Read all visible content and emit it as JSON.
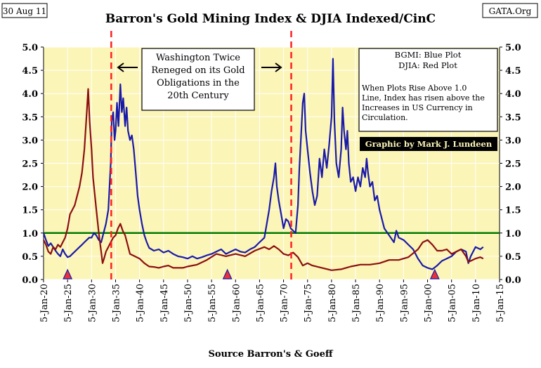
{
  "chart_data": {
    "type": "line",
    "title": "Barron's Gold Mining Index & DJIA Indexed/CinC",
    "date_badge": "30 Aug 11",
    "site_badge": "GATA.Org",
    "source": "Source Barron's & Goeff",
    "xlabel": "",
    "ylabel": "",
    "ylim": [
      0,
      5
    ],
    "xlim": [
      1920,
      2015
    ],
    "y_ticks": [
      "0.0",
      "0.5",
      "1.0",
      "1.5",
      "2.0",
      "2.5",
      "3.0",
      "3.5",
      "4.0",
      "4.5",
      "5.0"
    ],
    "x_ticks": [
      "5-Jan-20",
      "5-Jan-25",
      "5-Jan-30",
      "5-Jan-35",
      "5-Jan-40",
      "5-Jan-45",
      "5-Jan-50",
      "5-Jan-55",
      "5-Jan-60",
      "5-Jan-65",
      "5-Jan-70",
      "5-Jan-75",
      "5-Jan-80",
      "5-Jan-85",
      "5-Jan-90",
      "5-Jan-95",
      "5-Jan-00",
      "5-Jan-05",
      "5-Jan-10",
      "5-Jan-15"
    ],
    "x_tick_years": [
      1920,
      1925,
      1930,
      1935,
      1940,
      1945,
      1950,
      1955,
      1960,
      1965,
      1970,
      1975,
      1980,
      1985,
      1990,
      1995,
      2000,
      2005,
      2010,
      2015
    ],
    "grid": true,
    "reference_line": {
      "y": 1.0,
      "color": "#007a00"
    },
    "vertical_markers": [
      {
        "x": 1934.1,
        "color": "#ff2020"
      },
      {
        "x": 1971.6,
        "color": "#ff2020"
      }
    ],
    "triangle_markers": [
      {
        "x": 1925.0
      },
      {
        "x": 1958.3
      },
      {
        "x": 2001.5
      }
    ],
    "annotation_box": {
      "lines": [
        "Washington Twice",
        "Reneged on its Gold",
        "Obligations in the",
        "20th Century"
      ]
    },
    "legend_box": {
      "lines": [
        "BGMI: Blue Plot",
        "DJIA: Red Plot"
      ],
      "note": [
        "When Plots Rise Above 1.0",
        "Line, Index has risen above the",
        "Increases in US Currency in",
        "Circulation."
      ],
      "credit": "Graphic by Mark J. Lundeen"
    },
    "series": [
      {
        "color": "#1a1aa8",
        "x": [
          1920.0,
          1920.5,
          1921.0,
          1921.5,
          1922.0,
          1922.5,
          1923.0,
          1923.5,
          1924.0,
          1924.5,
          1925.0,
          1925.5,
          1926.0,
          1926.5,
          1927.0,
          1927.5,
          1928.0,
          1928.5,
          1929.0,
          1929.5,
          1930.0,
          1930.5,
          1931.0,
          1931.5,
          1932.0,
          1932.5,
          1933.0,
          1933.5,
          1934.0,
          1934.2,
          1934.5,
          1934.8,
          1935.0,
          1935.3,
          1935.6,
          1936.0,
          1936.3,
          1936.6,
          1937.0,
          1937.3,
          1937.6,
          1938.0,
          1938.4,
          1938.8,
          1939.2,
          1939.6,
          1940.0,
          1940.5,
          1941.0,
          1941.5,
          1942.0,
          1943.0,
          1944.0,
          1945.0,
          1946.0,
          1947.0,
          1948.0,
          1949.0,
          1950.0,
          1951.0,
          1952.0,
          1953.0,
          1954.0,
          1955.0,
          1956.0,
          1957.0,
          1958.0,
          1959.0,
          1960.0,
          1961.0,
          1962.0,
          1963.0,
          1964.0,
          1965.0,
          1966.0,
          1966.5,
          1967.0,
          1967.5,
          1968.0,
          1968.3,
          1968.6,
          1969.0,
          1969.5,
          1970.0,
          1970.5,
          1971.0,
          1971.5,
          1972.0,
          1972.5,
          1973.0,
          1973.3,
          1973.6,
          1974.0,
          1974.3,
          1974.6,
          1975.0,
          1975.5,
          1976.0,
          1976.5,
          1977.0,
          1977.5,
          1978.0,
          1978.5,
          1979.0,
          1979.5,
          1980.0,
          1980.3,
          1980.6,
          1981.0,
          1981.5,
          1982.0,
          1982.3,
          1982.6,
          1983.0,
          1983.3,
          1983.6,
          1984.0,
          1984.5,
          1985.0,
          1985.5,
          1986.0,
          1986.5,
          1987.0,
          1987.3,
          1987.6,
          1988.0,
          1988.5,
          1989.0,
          1989.5,
          1990.0,
          1991.0,
          1992.0,
          1993.0,
          1993.5,
          1994.0,
          1995.0,
          1996.0,
          1997.0,
          1998.0,
          1999.0,
          2000.0,
          2001.0,
          2002.0,
          2003.0,
          2004.0,
          2005.0,
          2006.0,
          2007.0,
          2008.0,
          2008.5,
          2009.0,
          2010.0,
          2011.0,
          2011.6
        ],
        "y": [
          1.0,
          0.85,
          0.72,
          0.78,
          0.7,
          0.62,
          0.55,
          0.5,
          0.65,
          0.55,
          0.48,
          0.5,
          0.55,
          0.6,
          0.65,
          0.7,
          0.75,
          0.8,
          0.85,
          0.9,
          0.9,
          1.0,
          0.95,
          0.85,
          0.8,
          1.0,
          1.2,
          1.5,
          2.5,
          3.4,
          3.6,
          3.0,
          3.2,
          3.8,
          3.3,
          4.2,
          3.6,
          3.9,
          3.3,
          3.7,
          3.2,
          3.0,
          3.1,
          2.8,
          2.3,
          1.8,
          1.5,
          1.2,
          0.95,
          0.8,
          0.68,
          0.62,
          0.65,
          0.58,
          0.62,
          0.55,
          0.5,
          0.48,
          0.45,
          0.5,
          0.45,
          0.48,
          0.52,
          0.55,
          0.6,
          0.65,
          0.55,
          0.6,
          0.65,
          0.6,
          0.58,
          0.65,
          0.7,
          0.8,
          0.9,
          1.2,
          1.5,
          1.9,
          2.2,
          2.5,
          2.0,
          1.7,
          1.4,
          1.1,
          1.3,
          1.25,
          1.1,
          1.05,
          1.0,
          1.6,
          2.4,
          3.0,
          3.8,
          4.0,
          3.2,
          2.8,
          2.3,
          1.9,
          1.6,
          1.8,
          2.6,
          2.2,
          2.8,
          2.4,
          2.9,
          3.5,
          4.75,
          3.4,
          2.5,
          2.2,
          2.8,
          3.7,
          3.2,
          2.8,
          3.2,
          2.5,
          2.1,
          2.2,
          1.9,
          2.2,
          2.0,
          2.4,
          2.2,
          2.6,
          2.3,
          2.0,
          2.1,
          1.7,
          1.8,
          1.5,
          1.1,
          0.95,
          0.8,
          1.05,
          0.9,
          0.85,
          0.75,
          0.65,
          0.45,
          0.3,
          0.25,
          0.22,
          0.3,
          0.4,
          0.45,
          0.5,
          0.6,
          0.65,
          0.6,
          0.35,
          0.5,
          0.7,
          0.65,
          0.7
        ]
      },
      {
        "color": "#8b1010",
        "x": [
          1920.0,
          1920.5,
          1921.0,
          1921.5,
          1922.0,
          1922.5,
          1923.0,
          1923.5,
          1924.0,
          1924.5,
          1925.0,
          1925.5,
          1926.0,
          1926.5,
          1927.0,
          1927.5,
          1928.0,
          1928.5,
          1929.0,
          1929.3,
          1929.6,
          1930.0,
          1930.3,
          1930.6,
          1931.0,
          1931.5,
          1932.0,
          1932.3,
          1932.6,
          1933.0,
          1933.5,
          1934.0,
          1934.5,
          1935.0,
          1935.5,
          1936.0,
          1936.5,
          1937.0,
          1937.5,
          1938.0,
          1939.0,
          1940.0,
          1941.0,
          1942.0,
          1943.0,
          1944.0,
          1945.0,
          1946.0,
          1947.0,
          1948.0,
          1949.0,
          1950.0,
          1952.0,
          1954.0,
          1956.0,
          1958.0,
          1960.0,
          1962.0,
          1964.0,
          1966.0,
          1967.0,
          1968.0,
          1969.0,
          1970.0,
          1971.0,
          1972.0,
          1973.0,
          1974.0,
          1975.0,
          1976.0,
          1978.0,
          1980.0,
          1982.0,
          1984.0,
          1986.0,
          1988.0,
          1990.0,
          1992.0,
          1994.0,
          1996.0,
          1998.0,
          1999.0,
          2000.0,
          2001.0,
          2002.0,
          2003.0,
          2004.0,
          2005.0,
          2006.0,
          2007.0,
          2008.0,
          2008.5,
          2009.0,
          2010.0,
          2011.0,
          2011.6
        ],
        "y": [
          0.85,
          0.75,
          0.6,
          0.55,
          0.7,
          0.65,
          0.75,
          0.7,
          0.8,
          0.9,
          1.1,
          1.4,
          1.5,
          1.6,
          1.8,
          2.0,
          2.3,
          2.8,
          3.6,
          4.1,
          3.4,
          2.8,
          2.2,
          1.9,
          1.5,
          1.0,
          0.6,
          0.35,
          0.45,
          0.6,
          0.7,
          0.8,
          0.9,
          0.95,
          1.1,
          1.2,
          1.05,
          0.95,
          0.75,
          0.55,
          0.5,
          0.45,
          0.35,
          0.28,
          0.27,
          0.25,
          0.28,
          0.3,
          0.25,
          0.25,
          0.25,
          0.28,
          0.32,
          0.42,
          0.55,
          0.5,
          0.55,
          0.5,
          0.62,
          0.7,
          0.65,
          0.72,
          0.65,
          0.55,
          0.52,
          0.58,
          0.48,
          0.3,
          0.35,
          0.3,
          0.25,
          0.2,
          0.22,
          0.28,
          0.32,
          0.32,
          0.35,
          0.42,
          0.42,
          0.48,
          0.65,
          0.8,
          0.85,
          0.75,
          0.62,
          0.62,
          0.65,
          0.55,
          0.6,
          0.65,
          0.5,
          0.38,
          0.4,
          0.45,
          0.48,
          0.45
        ]
      }
    ]
  }
}
